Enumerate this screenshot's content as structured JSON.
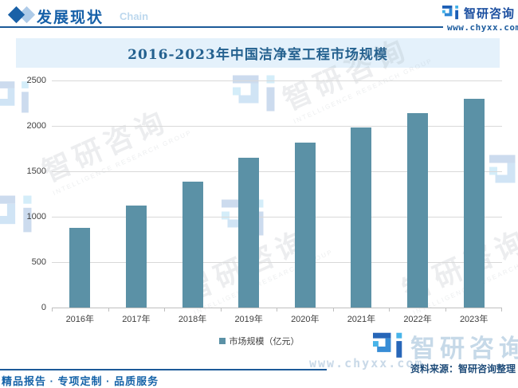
{
  "header": {
    "section_title": "发展现状",
    "watermark_word": "Chain",
    "brand": "智研咨询",
    "website": "www.chyxx.com"
  },
  "banner": {
    "title": "2016-2023年中国洁净室工程市场规模"
  },
  "chart_data": {
    "type": "bar",
    "title": "2016-2023年中国洁净室工程市场规模",
    "categories": [
      "2016年",
      "2017年",
      "2018年",
      "2019年",
      "2020年",
      "2021年",
      "2022年",
      "2023年"
    ],
    "values": [
      880,
      1120,
      1390,
      1650,
      1820,
      1980,
      2140,
      2300
    ],
    "xlabel": "",
    "ylabel": "",
    "ylim": [
      0,
      2500
    ],
    "y_ticks": [
      "0",
      "500",
      "1000",
      "1500",
      "2000",
      "2500"
    ],
    "grid": true,
    "legend": [
      "市场规模（亿元）"
    ],
    "legend_position": "bottom",
    "bar_color": "#5b91a6"
  },
  "footer": {
    "source": "资料来源：智研咨询整理",
    "tagline": "精品报告 · 专项定制 · 品质服务"
  },
  "watermarks": {
    "brand": "智研咨询",
    "subtitle": "INTELLIGENCE RESEARCH GROUP",
    "website": "www.chyxx.com"
  },
  "colors": {
    "accent_blue": "#1c5a99",
    "banner_bg": "#e4f1fb",
    "bar": "#5b91a6",
    "gridline": "#d9d9d9"
  }
}
